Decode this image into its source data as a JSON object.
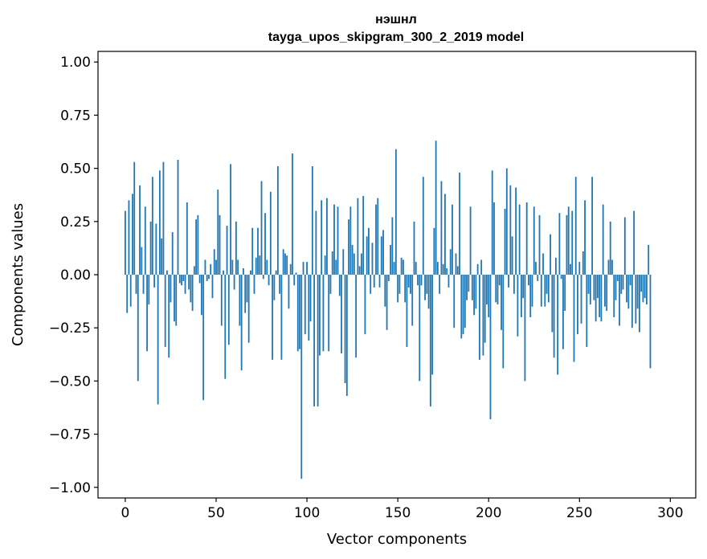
{
  "chart_data": {
    "type": "bar",
    "title": "нэшнл",
    "subtitle": "tayga_upos_skipgram_300_2_2019 model",
    "xlabel": "Vector components",
    "ylabel": "Components values",
    "xlim": [
      -15,
      314
    ],
    "ylim": [
      -1.05,
      1.05
    ],
    "xticks": [
      0,
      50,
      100,
      150,
      200,
      250,
      300
    ],
    "xtick_labels": [
      "0",
      "50",
      "100",
      "150",
      "200",
      "250",
      "300"
    ],
    "yticks": [
      1.0,
      0.75,
      0.5,
      0.25,
      0.0,
      -0.25,
      -0.5,
      -0.75,
      -1.0
    ],
    "ytick_labels": [
      "1.00",
      "0.75",
      "0.50",
      "0.25",
      "0.00",
      "−0.25",
      "−0.50",
      "−0.75",
      "−1.00"
    ],
    "grid": false,
    "bar_color": "#1f77b4",
    "values": [
      0.3,
      -0.18,
      0.35,
      -0.15,
      0.38,
      0.53,
      -0.09,
      -0.5,
      0.42,
      0.13,
      -0.09,
      0.32,
      -0.36,
      -0.14,
      0.25,
      0.46,
      -0.06,
      0.24,
      -0.61,
      0.49,
      0.17,
      0.53,
      -0.34,
      0.02,
      -0.39,
      -0.13,
      0.2,
      -0.22,
      -0.24,
      0.54,
      -0.04,
      -0.05,
      -0.03,
      -0.09,
      0.34,
      -0.07,
      -0.13,
      -0.17,
      0.04,
      0.26,
      0.28,
      -0.04,
      -0.19,
      -0.59,
      0.07,
      -0.03,
      -0.02,
      0.05,
      -0.11,
      0.12,
      0.07,
      0.4,
      0.28,
      -0.24,
      0.02,
      -0.49,
      0.23,
      -0.33,
      0.52,
      0.07,
      -0.07,
      0.25,
      0.07,
      -0.24,
      -0.45,
      0.03,
      -0.18,
      -0.13,
      -0.32,
      0.02,
      0.22,
      -0.09,
      0.08,
      0.22,
      0.09,
      0.44,
      -0.02,
      0.29,
      0.07,
      -0.05,
      0.39,
      -0.4,
      -0.12,
      0.02,
      0.51,
      -0.09,
      -0.4,
      0.12,
      0.1,
      0.09,
      -0.16,
      0.05,
      0.57,
      -0.05,
      0.01,
      -0.36,
      -0.35,
      -0.96,
      0.06,
      -0.28,
      0.06,
      -0.31,
      -0.22,
      0.51,
      -0.62,
      0.3,
      -0.62,
      -0.38,
      0.35,
      -0.36,
      0.09,
      0.36,
      -0.36,
      -0.09,
      0.11,
      0.33,
      0.07,
      0.32,
      -0.1,
      -0.37,
      0.12,
      -0.51,
      -0.57,
      0.26,
      0.32,
      0.14,
      0.1,
      -0.39,
      0.36,
      0.04,
      0.1,
      0.37,
      -0.28,
      0.18,
      0.22,
      -0.09,
      0.15,
      -0.06,
      0.33,
      0.36,
      -0.06,
      0.18,
      0.21,
      -0.15,
      -0.26,
      -0.03,
      0.14,
      0.27,
      0.06,
      0.59,
      -0.13,
      -0.09,
      0.08,
      0.07,
      -0.13,
      -0.34,
      -0.06,
      -0.09,
      -0.24,
      0.25,
      0.06,
      -0.05,
      -0.5,
      -0.05,
      0.46,
      -0.12,
      -0.09,
      -0.16,
      -0.62,
      -0.47,
      0.22,
      0.63,
      0.06,
      -0.09,
      0.44,
      0.05,
      0.38,
      0.03,
      -0.06,
      0.12,
      0.33,
      -0.25,
      0.1,
      0.04,
      0.48,
      -0.3,
      -0.28,
      -0.25,
      -0.12,
      -0.08,
      0.32,
      -0.12,
      -0.19,
      -0.16,
      0.05,
      -0.4,
      0.07,
      -0.38,
      -0.32,
      -0.14,
      -0.2,
      -0.68,
      0.49,
      0.34,
      -0.13,
      -0.14,
      -0.05,
      -0.26,
      -0.44,
      0.31,
      0.5,
      -0.06,
      0.42,
      0.18,
      -0.09,
      0.41,
      -0.29,
      0.33,
      -0.2,
      -0.11,
      -0.5,
      0.34,
      -0.05,
      -0.2,
      -0.15,
      0.32,
      0.06,
      -0.03,
      0.28,
      -0.15,
      0.1,
      -0.15,
      -0.09,
      -0.13,
      0.19,
      -0.27,
      -0.39,
      0.08,
      -0.47,
      0.29,
      -0.02,
      -0.35,
      -0.17,
      0.28,
      0.32,
      0.05,
      0.3,
      -0.41,
      0.46,
      -0.28,
      0.06,
      -0.23,
      0.11,
      0.35,
      -0.34,
      -0.09,
      -0.14,
      0.46,
      -0.12,
      -0.22,
      -0.11,
      -0.2,
      -0.22,
      0.33,
      -0.15,
      -0.17,
      0.07,
      0.25,
      0.07,
      -0.2,
      -0.12,
      -0.03,
      -0.24,
      -0.09,
      -0.07,
      0.27,
      -0.13,
      -0.16,
      -0.05,
      -0.25,
      0.3,
      -0.23,
      -0.16,
      -0.27,
      -0.08,
      -0.13,
      -0.11,
      -0.14,
      0.14,
      -0.44
    ]
  }
}
